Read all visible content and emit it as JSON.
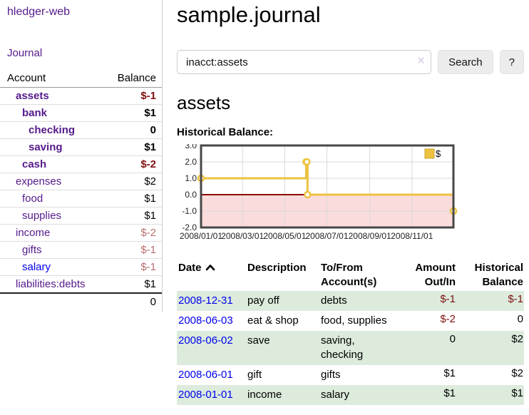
{
  "app": {
    "brand": "hledger-web"
  },
  "sidebar": {
    "journal_link": "Journal",
    "accounts_table": {
      "headers": [
        "Account",
        "Balance"
      ],
      "rows": [
        {
          "name": "assets",
          "depth": 0,
          "bold": true,
          "balance": "$-1",
          "balance_style": "neg-strong"
        },
        {
          "name": "bank",
          "depth": 1,
          "bold": true,
          "balance": "$1",
          "balance_style": "normal"
        },
        {
          "name": "checking",
          "depth": 2,
          "bold": true,
          "balance": "0",
          "balance_style": "normal"
        },
        {
          "name": "saving",
          "depth": 2,
          "bold": true,
          "balance": "$1",
          "balance_style": "normal"
        },
        {
          "name": "cash",
          "depth": 1,
          "bold": true,
          "balance": "$-2",
          "balance_style": "neg-strong"
        },
        {
          "name": "expenses",
          "depth": 0,
          "bold": false,
          "balance": "$2",
          "balance_style": "normal"
        },
        {
          "name": "food",
          "depth": 1,
          "bold": false,
          "balance": "$1",
          "balance_style": "normal"
        },
        {
          "name": "supplies",
          "depth": 1,
          "bold": false,
          "balance": "$1",
          "balance_style": "normal"
        },
        {
          "name": "income",
          "depth": 0,
          "bold": false,
          "balance": "$-2",
          "balance_style": "neg-muted"
        },
        {
          "name": "gifts",
          "depth": 1,
          "bold": false,
          "balance": "$-1",
          "balance_style": "neg-muted"
        },
        {
          "name": "salary",
          "depth": 1,
          "bold": false,
          "link_color": "blue",
          "balance": "$-1",
          "balance_style": "neg-muted"
        },
        {
          "name": "liabilities:debts",
          "depth": 0,
          "bold": false,
          "balance": "$1",
          "balance_style": "normal"
        }
      ],
      "total": "0"
    }
  },
  "header": {
    "title": "sample.journal"
  },
  "search": {
    "value": "inacct:assets",
    "clear_icon": "×",
    "button_label": "Search",
    "help_label": "?"
  },
  "account_page": {
    "heading": "assets",
    "chart_label": "Historical Balance:"
  },
  "chart_data": {
    "type": "line",
    "title": "Historical Balance:",
    "series": [
      {
        "name": "$",
        "color": "#edc240",
        "step": true,
        "points": [
          [
            "2008-01-01",
            1
          ],
          [
            "2008-06-01",
            2
          ],
          [
            "2008-06-02",
            2
          ],
          [
            "2008-06-03",
            0
          ],
          [
            "2008-12-31",
            -1
          ]
        ]
      }
    ],
    "x_ticks": [
      "2008/01/01",
      "2008/03/01",
      "2008/05/01",
      "2008/07/01",
      "2008/09/01",
      "2008/11/01"
    ],
    "y_ticks": [
      3.0,
      2.0,
      1.0,
      0.0,
      -1.0,
      -2.0
    ],
    "xlim": [
      "2008-01-01",
      "2008-12-31"
    ],
    "ylim": [
      -2,
      3
    ],
    "grid": true,
    "legend_position": "top-right",
    "zero_line_color": "#8b0000",
    "negative_region_color": "#fbdcdc",
    "grid_color": "#d9d9d9",
    "border_color": "#474747"
  },
  "register": {
    "headers": [
      "Date",
      "Description",
      "To/From Account(s)",
      "Amount Out/In",
      "Historical Balance"
    ],
    "sort": "ascending",
    "rows": [
      {
        "date": "2008-12-31",
        "description": "pay off",
        "accounts": "debts",
        "amount": "$-1",
        "amount_negative": true,
        "balance": "$-1",
        "balance_negative": true,
        "striped": true
      },
      {
        "date": "2008-06-03",
        "description": "eat & shop",
        "accounts": "food, supplies",
        "amount": "$-2",
        "amount_negative": true,
        "balance": "0",
        "balance_negative": false,
        "striped": false
      },
      {
        "date": "2008-06-02",
        "description": "save",
        "accounts": "saving, checking",
        "amount": "0",
        "amount_negative": false,
        "balance": "$2",
        "balance_negative": false,
        "striped": true
      },
      {
        "date": "2008-06-01",
        "description": "gift",
        "accounts": "gifts",
        "amount": "$1",
        "amount_negative": false,
        "balance": "$2",
        "balance_negative": false,
        "striped": false
      },
      {
        "date": "2008-01-01",
        "description": "income",
        "accounts": "salary",
        "amount": "$1",
        "amount_negative": false,
        "balance": "$1",
        "balance_negative": false,
        "striped": true
      }
    ]
  },
  "colors": {
    "link_purple": "#551a8b",
    "link_blue": "#0000ee",
    "negative_strong": "#7f1010",
    "negative_muted": "#b76e6e",
    "row_stripe_green": "#dcebdc",
    "series_yellow": "#edc240"
  }
}
